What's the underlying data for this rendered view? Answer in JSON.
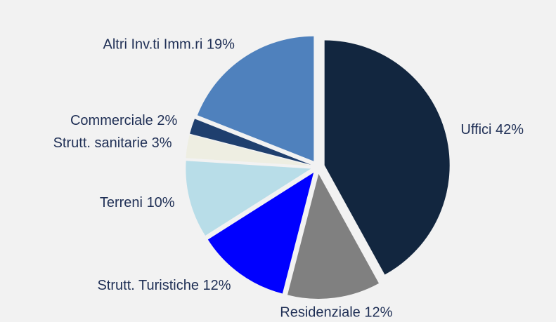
{
  "chart_data": {
    "type": "pie",
    "categories": [
      "Uffici",
      "Residenziale",
      "Strutt. Turistiche",
      "Terreni",
      "Strutt. sanitarie",
      "Commerciale",
      "Altri Inv.ti Imm.ri"
    ],
    "values": [
      42,
      12,
      12,
      10,
      3,
      2,
      19
    ],
    "value_labels": [
      "42%",
      "12%",
      "12%",
      "10%",
      "3%",
      "2%",
      "19%"
    ],
    "colors": [
      "#12263f",
      "#808080",
      "#0000ff",
      "#b8dde8",
      "#eeeee2",
      "#1f3f6e",
      "#4f81bd"
    ],
    "exploded": true
  }
}
